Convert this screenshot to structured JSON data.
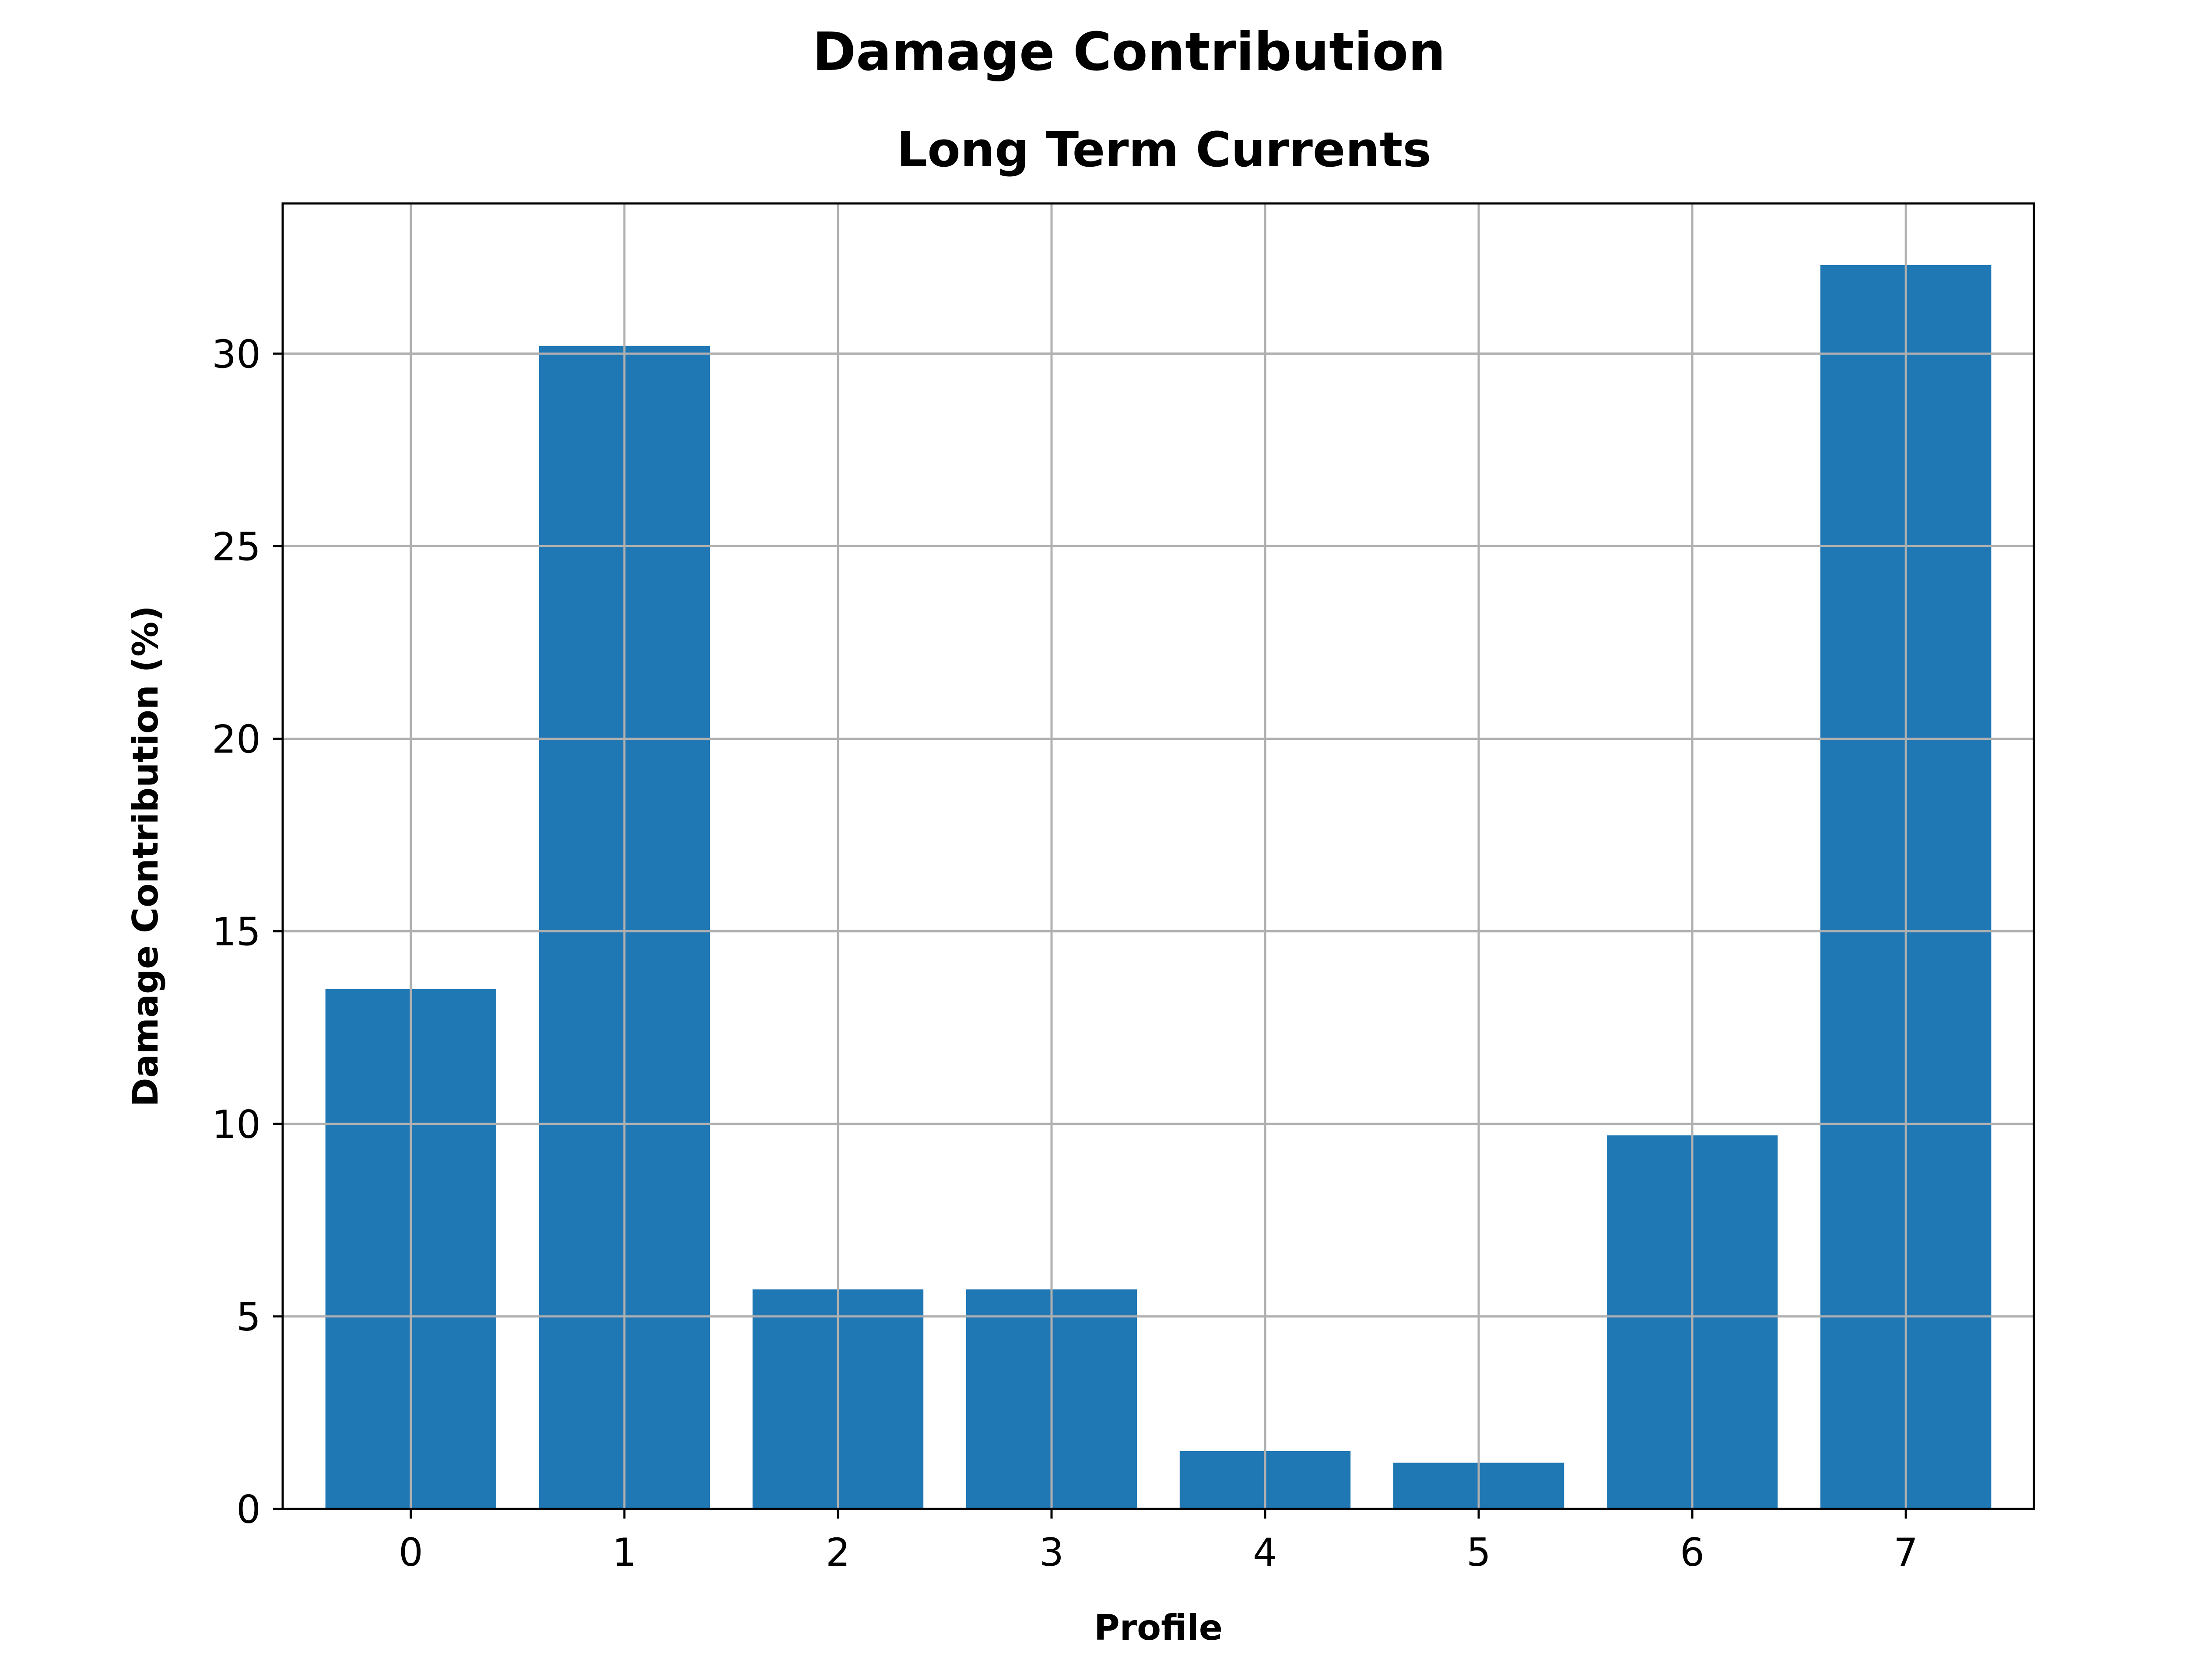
{
  "chart_data": {
    "type": "bar",
    "title": "Damage Contribution",
    "subtitle": "Long Term Currents",
    "xlabel": "Profile",
    "ylabel": "Damage Contribution (%)",
    "categories": [
      "0",
      "1",
      "2",
      "3",
      "4",
      "5",
      "6",
      "7"
    ],
    "values": [
      13.5,
      30.2,
      5.7,
      5.7,
      1.5,
      1.2,
      9.7,
      32.3
    ],
    "ylim": [
      0,
      33.9
    ],
    "yticks": [
      0,
      5,
      10,
      15,
      20,
      25,
      30
    ],
    "grid": true,
    "bar_color": "#1f77b4",
    "grid_color": "#b0b0b0"
  }
}
